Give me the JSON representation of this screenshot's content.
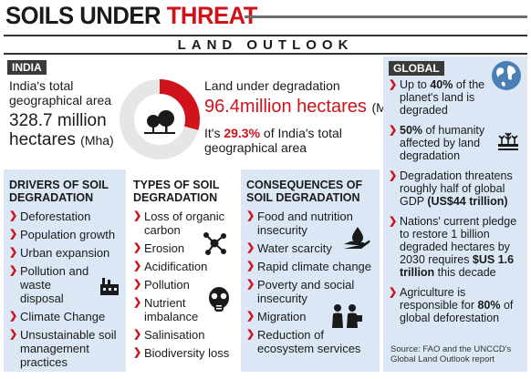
{
  "header": {
    "title_part1": "SOILS UNDER ",
    "title_part2": "THREAT",
    "subtitle": "LAND OUTLOOK"
  },
  "india": {
    "tag": "INDIA",
    "area_label": "India's total geographical area",
    "area_value": "328.7 million hectares",
    "area_unit": "(Mha)",
    "degradation_label": "Land under degradation",
    "degradation_value": "96.4million hectares",
    "degradation_unit": "(Mha)",
    "pct_prefix": "It's ",
    "pct_value": "29.3%",
    "pct_suffix": " of India's total geographical area",
    "pct_fraction": 0.293
  },
  "drivers": {
    "heading": "Drivers of soil degradation",
    "items": [
      "Deforestation",
      "Population growth",
      "Urban expansion",
      "Pollution and waste disposal",
      "Climate Change",
      "Unsustainable soil management practices"
    ]
  },
  "types": {
    "heading": "Types of soil degradation",
    "items": [
      "Loss of organic carbon",
      "Erosion",
      "Acidification",
      "Pollution",
      "Nutrient imbalance",
      "Salinisation",
      "Biodiversity loss"
    ]
  },
  "consequences": {
    "heading": "Consequences of soil degradation",
    "items": [
      "Food and nutrition insecurity",
      "Water scarcity",
      "Rapid climate change",
      "Poverty and social insecurity",
      "Migration",
      "Reduction of ecosystem services"
    ]
  },
  "global": {
    "tag": "GLOBAL",
    "items": [
      {
        "pre": "Up to ",
        "bold": "40%",
        "post": " of the planet's land is degraded"
      },
      {
        "pre": "",
        "bold": "50%",
        "post": " of humanity affected by land degradation"
      },
      {
        "pre": "Degradation threatens roughly half of global GDP ",
        "bold": "(US$44 trillion)",
        "post": ""
      },
      {
        "pre": "Nations' current pledge to restore 1 billion degraded hectares by 2030 requires ",
        "bold": "$US 1.6 trillion",
        "post": " this decade"
      },
      {
        "pre": "Agriculture is responsible for ",
        "bold": "80%",
        "post": " of global deforestation"
      }
    ],
    "source": "Source: FAO and the UNCCD's Global Land Outlook report"
  },
  "colors": {
    "accent_red": "#d0121b",
    "panel_blue": "#dbe7f5",
    "dark": "#3a3a3a"
  }
}
